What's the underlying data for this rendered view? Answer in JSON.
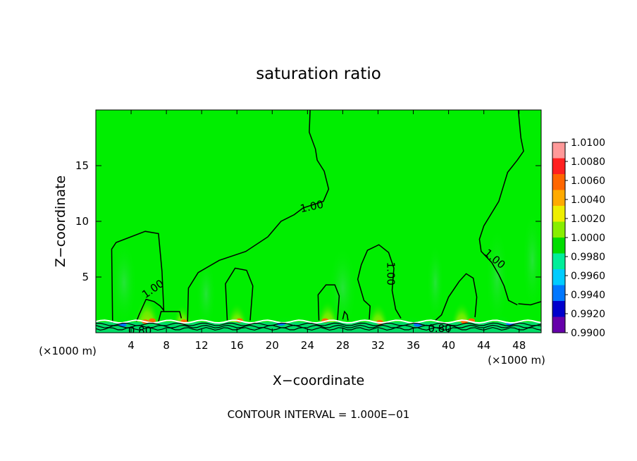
{
  "chart_data": {
    "type": "heatmap",
    "title": "saturation ratio",
    "xlabel": "X−coordinate",
    "ylabel": "Z−coordinate",
    "x_unit_left": "(×1000 m)",
    "x_unit_right": "(×1000 m)",
    "footer": "CONTOUR INTERVAL = 1.000E−01",
    "xlim": [
      0,
      50.5
    ],
    "ylim": [
      0,
      20
    ],
    "x_ticks": [
      4,
      8,
      12,
      16,
      20,
      24,
      28,
      32,
      36,
      40,
      44,
      48
    ],
    "x_tick_labels": [
      "4",
      "8",
      "12",
      "16",
      "20",
      "24",
      "28",
      "32",
      "36",
      "40",
      "44",
      "48"
    ],
    "y_ticks": [
      5,
      10,
      15
    ],
    "y_tick_labels": [
      "5",
      "10",
      "15"
    ],
    "contour_labels": [
      {
        "text": "1.00",
        "x": 6.5,
        "y": 3.9,
        "angle": -35
      },
      {
        "text": "1.00",
        "x": 24.5,
        "y": 11.3,
        "angle": -12
      },
      {
        "text": "1.00",
        "x": 33.4,
        "y": 5.3,
        "angle": 90
      },
      {
        "text": "1.00",
        "x": 45.2,
        "y": 6.6,
        "angle": 40
      },
      {
        "text": "0.80",
        "x": 5.0,
        "y": 0.15,
        "angle": 0
      },
      {
        "text": "0.80",
        "x": 39.0,
        "y": 0.35,
        "angle": 0
      }
    ],
    "colorbar": {
      "levels": [
        1.01,
        1.008,
        1.006,
        1.004,
        1.002,
        1.0,
        0.998,
        0.996,
        0.994,
        0.992,
        0.99
      ],
      "labels": [
        "1.0100",
        "1.0080",
        "1.0060",
        "1.0040",
        "1.0020",
        "1.0000",
        "0.9980",
        "0.9960",
        "0.9940",
        "0.9920",
        "0.9900"
      ],
      "colors": [
        "#ff9999",
        "#ff2020",
        "#ff6600",
        "#ffaa00",
        "#eeee00",
        "#88ee00",
        "#00dd00",
        "#00ee99",
        "#00ccff",
        "#0077ff",
        "#0000cc",
        "#6600aa"
      ]
    },
    "field_color": "#00ee00",
    "contour_color": "#000000"
  }
}
